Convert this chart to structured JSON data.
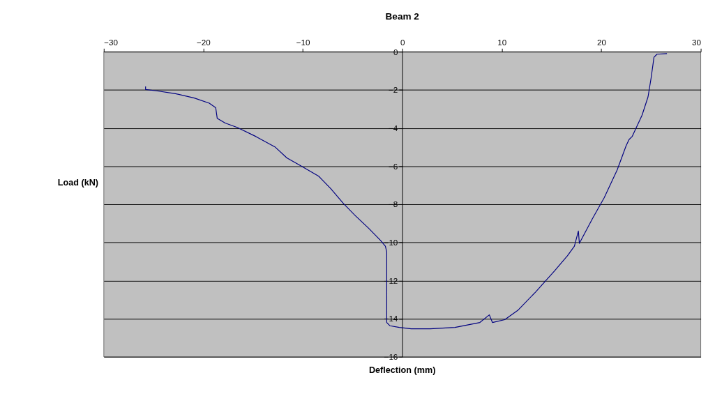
{
  "chart_data": {
    "type": "line",
    "title": "Beam 2",
    "xlabel": "Deflection (mm)",
    "ylabel": "Load (kN)",
    "xlim": [
      -30,
      30
    ],
    "xticks": [
      -30,
      -20,
      -10,
      0,
      10,
      20,
      30
    ],
    "ylim": [
      -16,
      0
    ],
    "yticks": [
      -16,
      -14,
      -12,
      -10,
      -8,
      -6,
      -4,
      -2,
      0
    ],
    "grid": "y",
    "marker": "none",
    "line_style": "solid",
    "series": [
      {
        "color": "#000080",
        "x": [
          -25.8,
          -25.8,
          -24.7,
          -22.8,
          -20.9,
          -19.4,
          -18.75,
          -18.6,
          -17.8,
          -16.6,
          -14.7,
          -12.8,
          -11.6,
          -10.3,
          -8.4,
          -7.2,
          -5.9,
          -4.7,
          -3.4,
          -2.2,
          -1.7,
          -1.56,
          -1.56,
          -1.56,
          -1.25,
          -0.3,
          0.9,
          2.8,
          5.3,
          7.8,
          8.75,
          9.06,
          10.3,
          11.6,
          13.4,
          15.3,
          16.6,
          17.3,
          17.7,
          17.8,
          19.1,
          20.3,
          21.6,
          22.5,
          22.8,
          23.1,
          24.1,
          24.7,
          25.0,
          25.3,
          25.6,
          26.6
        ],
        "values": [
          -1.82,
          -1.98,
          -2.05,
          -2.2,
          -2.43,
          -2.7,
          -2.94,
          -3.49,
          -3.74,
          -3.97,
          -4.45,
          -4.99,
          -5.57,
          -5.95,
          -6.53,
          -7.17,
          -7.97,
          -8.61,
          -9.25,
          -9.89,
          -10.2,
          -10.5,
          -11.97,
          -14.2,
          -14.37,
          -14.46,
          -14.53,
          -14.53,
          -14.46,
          -14.2,
          -13.8,
          -14.2,
          -14.05,
          -13.57,
          -12.6,
          -11.5,
          -10.7,
          -10.2,
          -9.4,
          -10.05,
          -8.77,
          -7.65,
          -6.2,
          -4.93,
          -4.6,
          -4.45,
          -3.33,
          -2.37,
          -1.41,
          -0.29,
          -0.13,
          -0.1
        ]
      }
    ]
  }
}
